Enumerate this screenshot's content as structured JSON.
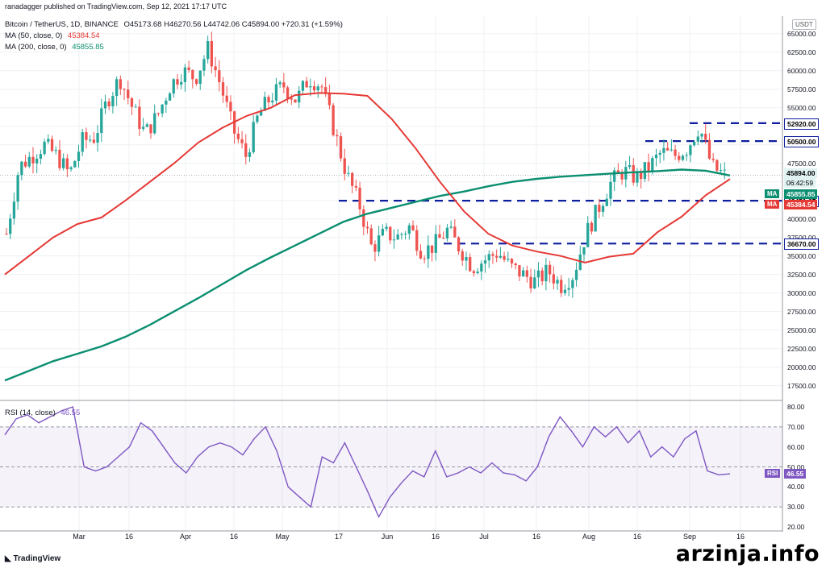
{
  "header": {
    "published": "ranadagger published on TradingView.com, Sep 12, 2021 17:17 UTC",
    "symbol": "Bitcoin / TetherUS, 1D, BINANCE",
    "ohlc": "O45173.68 H46270.56 L44742.06 C45894.00 +720.31 (+1.59%)",
    "ma50_label": "MA (50, close, 0)",
    "ma50_value": "45384.54",
    "ma200_label": "MA (200, close, 0)",
    "ma200_value": "45855.85",
    "rsi_label": "RSI (14, close)",
    "rsi_value": "46.55"
  },
  "currency_badge": "USDT",
  "watermark": "arzinja.info",
  "logo_text": "TradingView",
  "colors": {
    "up": "#26a69a",
    "down": "#ef5350",
    "ma50": "#e53935",
    "ma200": "#0b8f70",
    "rsi": "#7e57c2",
    "level_line": "#0d1e9e"
  },
  "chart_data": [
    {
      "type": "line",
      "title": "Bitcoin / TetherUS, 1D, BINANCE",
      "x_ticks": [
        "Mar",
        "16",
        "Apr",
        "16",
        "May",
        "17",
        "Jun",
        "16",
        "Jul",
        "16",
        "Aug",
        "16",
        "Sep",
        "16"
      ],
      "y_ticks": [
        17500,
        20000,
        22500,
        25000,
        27500,
        30000,
        32500,
        35000,
        37500,
        40000,
        42500,
        45000,
        47500,
        50000,
        52500,
        55000,
        57500,
        60000,
        62500,
        65000
      ],
      "ylim": [
        15500,
        66500
      ],
      "last_price_label": "45894.00",
      "countdown_label": "06:42:59",
      "series": [
        {
          "name": "MA (50, close, 0)",
          "value_label": "45384.54",
          "values": [
            32500,
            35000,
            37500,
            39300,
            40200,
            42500,
            45000,
            47500,
            50300,
            52300,
            53900,
            55000,
            56700,
            57000,
            56900,
            56600,
            53500,
            49500,
            45000,
            41000,
            38000,
            36400,
            35600,
            35000,
            34100,
            34900,
            35300,
            38200,
            40300,
            43200,
            45384
          ]
        },
        {
          "name": "MA (200, close, 0)",
          "value_label": "45855.85",
          "values": [
            18200,
            19500,
            20800,
            21800,
            22800,
            24100,
            25700,
            27500,
            29300,
            31200,
            33100,
            34800,
            36400,
            38000,
            39600,
            40700,
            41500,
            42300,
            43100,
            43700,
            44400,
            45000,
            45400,
            45700,
            45900,
            46100,
            46300,
            46450,
            46650,
            46500,
            45856
          ]
        }
      ],
      "levels": [
        {
          "label": "52920.00",
          "value": 52920
        },
        {
          "label": "50500.00",
          "value": 50500
        },
        {
          "label": "42451.67",
          "value": 42452
        },
        {
          "label": "36670.00",
          "value": 36670
        }
      ],
      "price_path": [
        38000,
        47000,
        48500,
        50000,
        48500,
        46000,
        50500,
        51000,
        56000,
        59000,
        55000,
        51500,
        54000,
        58000,
        60000,
        59000,
        63000,
        58000,
        52000,
        48500,
        54000,
        56500,
        58000,
        56000,
        59000,
        58000,
        52000,
        46000,
        42000,
        36000,
        38000,
        37500,
        39000,
        35500,
        36500,
        38500,
        36000,
        33500,
        34500,
        35500,
        33500,
        32500,
        31500,
        33000,
        31000,
        32500,
        38000,
        41500,
        45000,
        46500,
        45500,
        47000,
        49000,
        48500,
        49500,
        52500,
        47000,
        45894
      ]
    },
    {
      "type": "line",
      "title": "RSI (14, close)",
      "value_label": "46.55",
      "y_ticks": [
        20,
        30,
        40,
        50,
        60,
        70,
        80
      ],
      "ylim": [
        18,
        82
      ],
      "bands": [
        30,
        70
      ],
      "values": [
        66,
        74,
        76,
        72,
        75,
        78,
        80,
        50,
        48,
        50,
        55,
        60,
        72,
        68,
        60,
        52,
        47,
        55,
        60,
        62,
        60,
        56,
        64,
        70,
        58,
        40,
        35,
        30,
        55,
        52,
        62,
        50,
        38,
        25,
        35,
        42,
        48,
        45,
        58,
        45,
        47,
        50,
        47,
        52,
        47,
        46,
        43,
        50,
        65,
        75,
        68,
        60,
        70,
        65,
        70,
        62,
        68,
        55,
        60,
        55,
        64,
        68,
        48,
        46,
        46.55
      ]
    }
  ]
}
